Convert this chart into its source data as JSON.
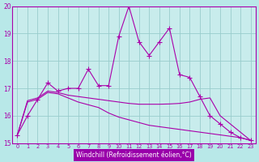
{
  "xlabel": "Windchill (Refroidissement éolien,°C)",
  "x": [
    0,
    1,
    2,
    3,
    4,
    5,
    6,
    7,
    8,
    9,
    10,
    11,
    12,
    13,
    14,
    15,
    16,
    17,
    18,
    19,
    20,
    21,
    22,
    23
  ],
  "line1": [
    15.3,
    16.0,
    16.6,
    17.2,
    16.9,
    17.0,
    17.0,
    17.7,
    17.1,
    17.1,
    18.9,
    20.0,
    18.7,
    18.2,
    18.7,
    19.2,
    17.5,
    17.4,
    16.7,
    16.0,
    15.7,
    15.4,
    15.2,
    15.1
  ],
  "line2": [
    15.3,
    16.55,
    16.65,
    16.9,
    16.85,
    16.75,
    16.7,
    16.65,
    16.6,
    16.55,
    16.5,
    16.45,
    16.42,
    16.42,
    16.42,
    16.43,
    16.45,
    16.5,
    16.6,
    16.65,
    16.0,
    15.7,
    15.4,
    15.1
  ],
  "line3": [
    15.3,
    16.5,
    16.6,
    16.85,
    16.8,
    16.65,
    16.5,
    16.4,
    16.3,
    16.1,
    15.95,
    15.85,
    15.75,
    15.65,
    15.6,
    15.55,
    15.5,
    15.45,
    15.4,
    15.35,
    15.3,
    15.25,
    15.2,
    15.1
  ],
  "ylim": [
    15,
    20
  ],
  "xlim": [
    -0.5,
    23.5
  ],
  "yticks": [
    15,
    16,
    17,
    18,
    19,
    20
  ],
  "line_color": "#aa00aa",
  "bg_color": "#b8e8e8",
  "plot_bg": "#c8ecec",
  "grid_color": "#99cccc",
  "xlabel_bg": "#9900aa",
  "xlabel_fg": "#ffffff",
  "marker": "+",
  "marker_size": 4,
  "lw": 0.8
}
